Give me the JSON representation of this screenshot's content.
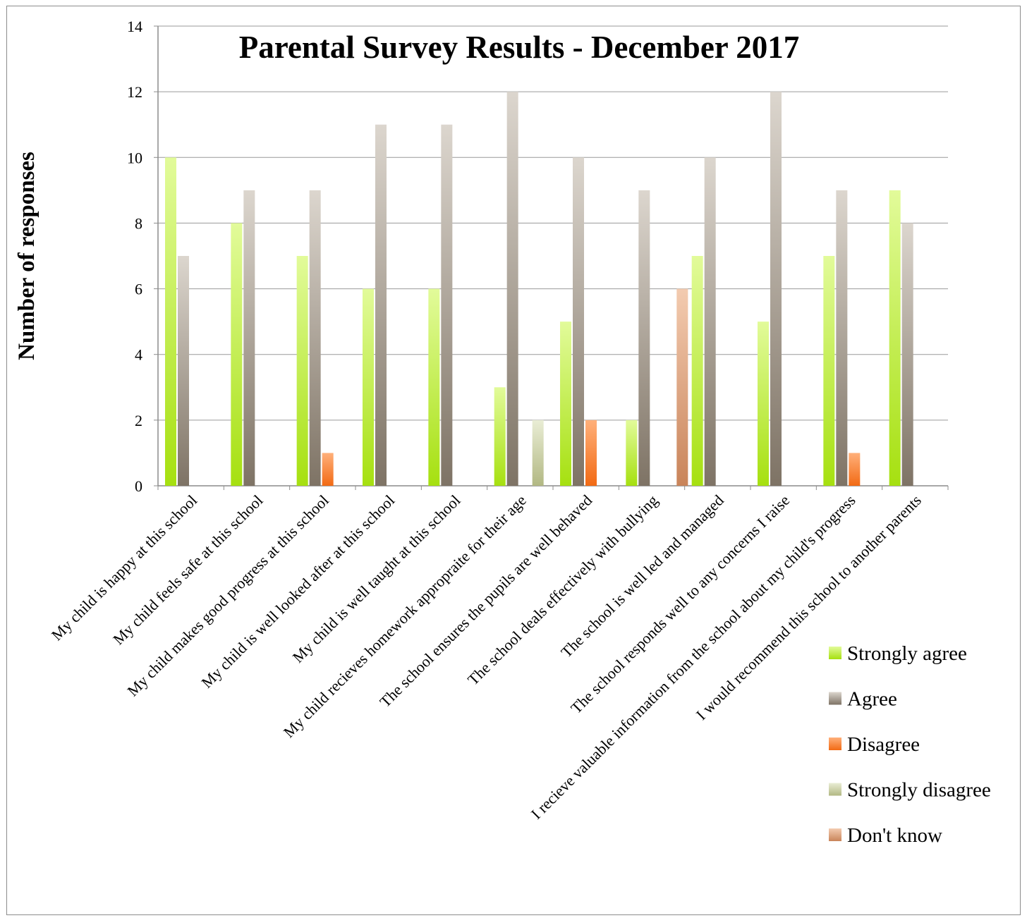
{
  "chart_data": {
    "type": "bar",
    "title": "Parental Survey Results - December 2017",
    "xlabel": "",
    "ylabel": "Number of responses",
    "ylim": [
      0,
      14
    ],
    "yticks": [
      "0",
      "2",
      "4",
      "6",
      "8",
      "10",
      "12",
      "14"
    ],
    "grid": true,
    "legend_position": "right",
    "categories": [
      "My child is happy at this school",
      "My child feels safe at this school",
      "My child makes good progress at this school",
      "My child is well looked after at this school",
      "My child is well taught at this school",
      "My child recieves homework appropraite for their age",
      "The school ensures the pupils are well behaved",
      "The school deals effectively with bullying",
      "The school is well led and managed",
      "The school responds well to any concerns I raise",
      "I recieve valuable information from the school about my child's progress",
      "I would recommend this school to another parents"
    ],
    "series": [
      {
        "name": "Strongly agree",
        "values": [
          10,
          8,
          7,
          6,
          6,
          3,
          5,
          2,
          7,
          5,
          7,
          9
        ]
      },
      {
        "name": "Agree",
        "values": [
          7,
          9,
          9,
          11,
          11,
          12,
          10,
          9,
          10,
          12,
          9,
          8
        ]
      },
      {
        "name": "Disagree",
        "values": [
          0,
          0,
          1,
          0,
          0,
          0,
          2,
          0,
          0,
          0,
          1,
          0
        ]
      },
      {
        "name": "Strongly disagree",
        "values": [
          0,
          0,
          0,
          0,
          0,
          2,
          0,
          0,
          0,
          0,
          0,
          0
        ]
      },
      {
        "name": "Don't know",
        "values": [
          0,
          0,
          0,
          0,
          0,
          0,
          0,
          6,
          0,
          0,
          0,
          0
        ]
      }
    ]
  },
  "colors": {
    "strongly_agree": [
      "#e2fb9a",
      "#a6e010"
    ],
    "agree": [
      "#dcd6ce",
      "#7e7365"
    ],
    "disagree": [
      "#ffb07a",
      "#f26a14"
    ],
    "strongly_disagree": [
      "#e9edd5",
      "#b2b883"
    ],
    "dont_know": [
      "#f3cbb0",
      "#c9845a"
    ],
    "gridline": "#9a9a9a",
    "axis": "#8c8c8c"
  }
}
